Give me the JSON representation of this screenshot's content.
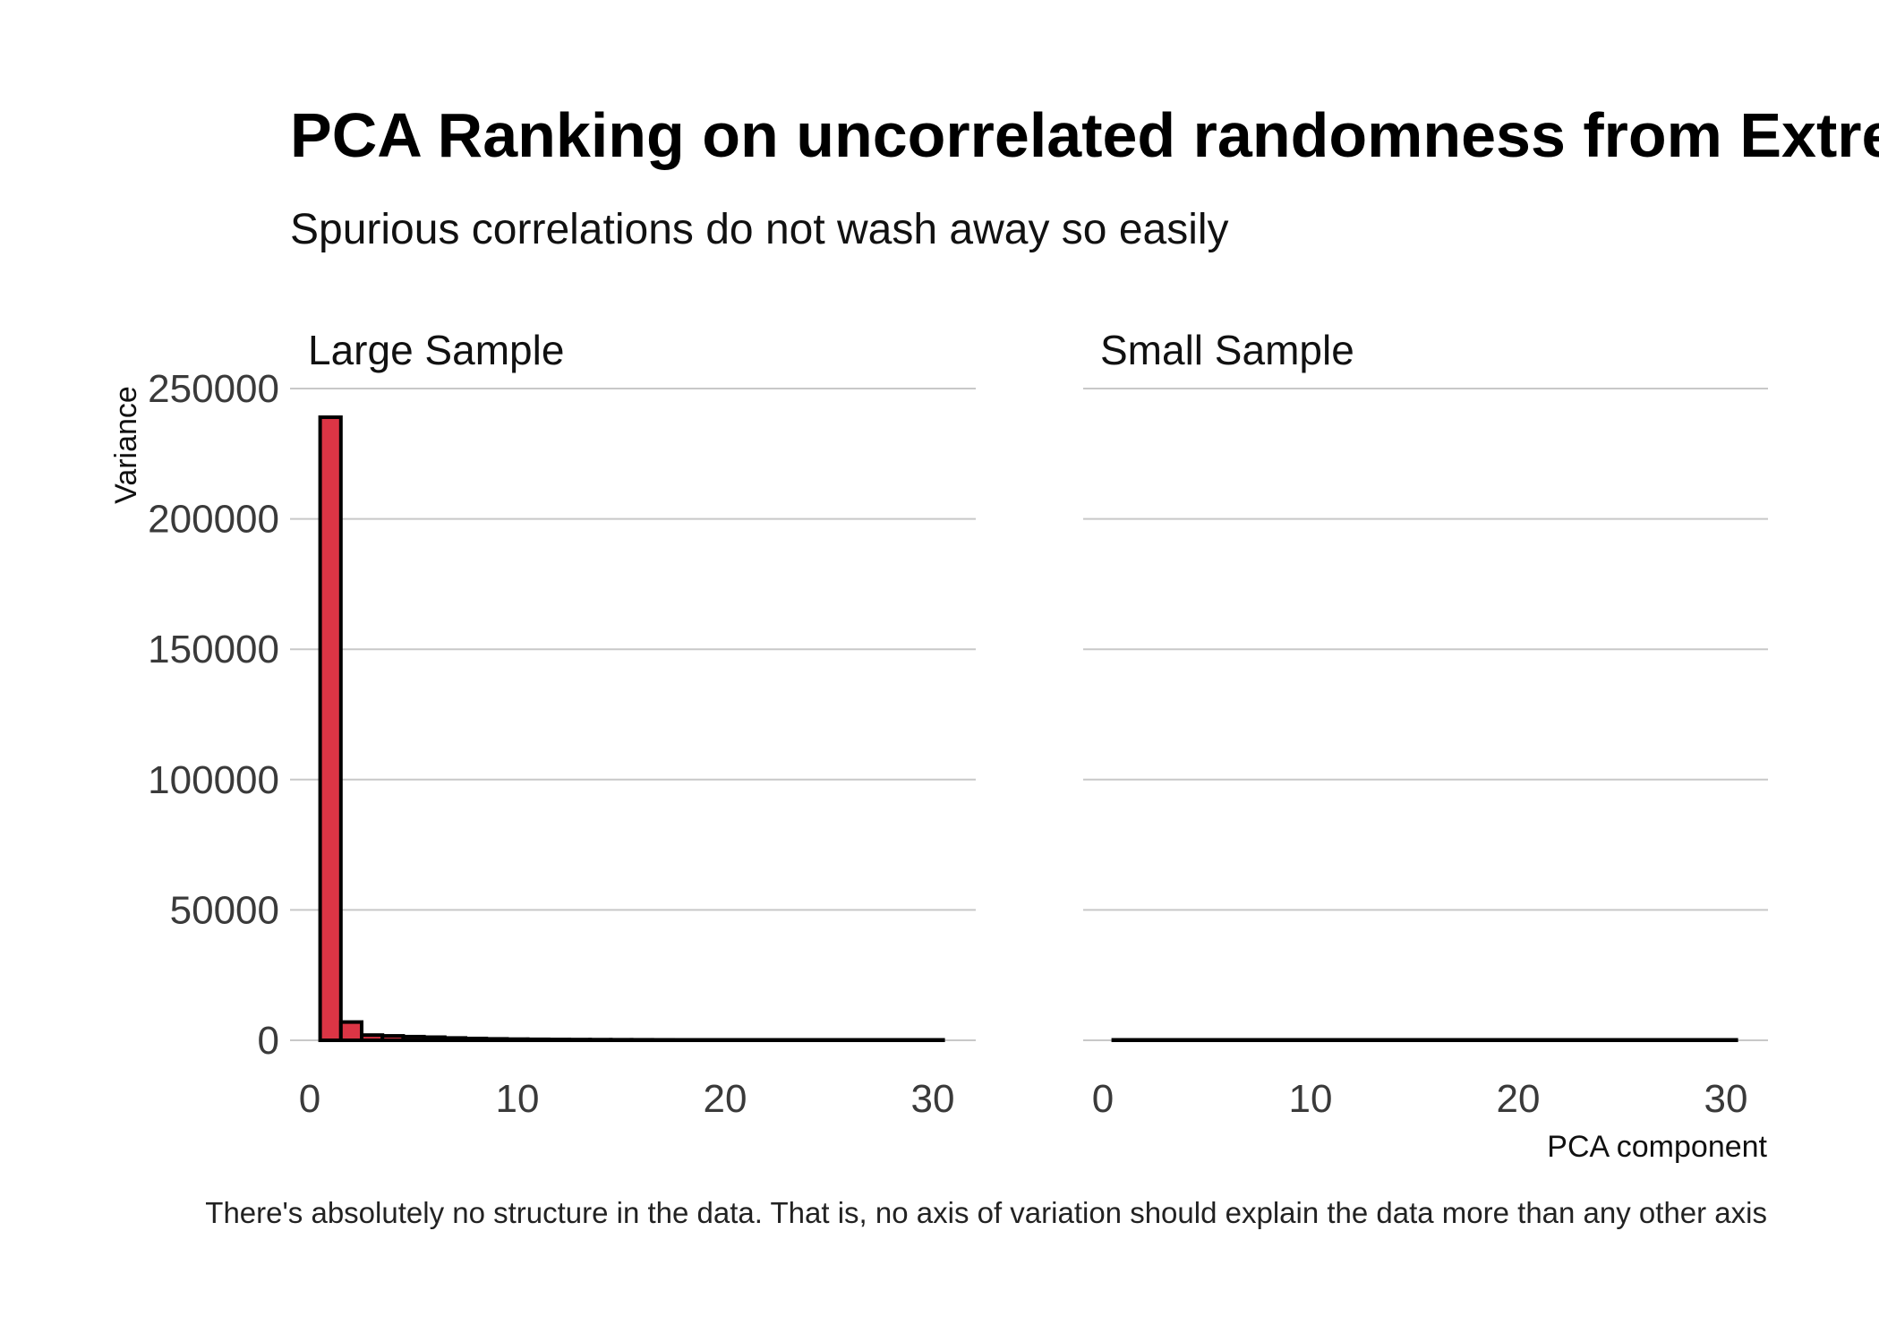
{
  "title": "PCA Ranking on uncorrelated randomness from Extremistan",
  "subtitle": "Spurious correlations do not wash away so easily",
  "caption": "There's absolutely no structure in the data. That is, no axis of variation should explain the data more than any other axis",
  "colors": {
    "bar_fill": "#dc3545",
    "bar_stroke": "#000000",
    "grid": "#c8c8c8",
    "background": "#ffffff"
  },
  "chart_data": [
    {
      "type": "bar",
      "facet": "Large Sample",
      "x": [
        1,
        2,
        3,
        4,
        5,
        6,
        7,
        8,
        9,
        10,
        11,
        12,
        13,
        14,
        15,
        16,
        17,
        18,
        19,
        20,
        21,
        22,
        23,
        24,
        25,
        26,
        27,
        28,
        29,
        30
      ],
      "values": [
        239000,
        7000,
        2000,
        1700,
        1400,
        1200,
        900,
        700,
        550,
        450,
        380,
        320,
        280,
        250,
        220,
        200,
        180,
        160,
        150,
        140,
        130,
        120,
        110,
        100,
        90,
        80,
        70,
        60,
        50,
        40
      ],
      "xlabel": "",
      "ylabel": "Variance",
      "xlim": [
        0,
        31
      ],
      "ylim": [
        0,
        250000
      ],
      "x_ticks": [
        "0",
        "10",
        "20",
        "30"
      ],
      "y_ticks": [
        "0",
        "50000",
        "100000",
        "150000",
        "200000",
        "250000"
      ],
      "grid": "horizontal"
    },
    {
      "type": "bar",
      "facet": "Small Sample",
      "x": [
        1,
        2,
        3,
        4,
        5,
        6,
        7,
        8,
        9,
        10,
        11,
        12,
        13,
        14,
        15,
        16,
        17,
        18,
        19,
        20,
        21,
        22,
        23,
        24,
        25,
        26,
        27,
        28,
        29,
        30
      ],
      "values": [
        30,
        25,
        22,
        20,
        18,
        16,
        15,
        14,
        13,
        12,
        11,
        10,
        10,
        9,
        9,
        8,
        8,
        7,
        7,
        6,
        6,
        5,
        5,
        5,
        4,
        4,
        3,
        3,
        2,
        2
      ],
      "xlabel": "PCA component",
      "ylabel": "",
      "xlim": [
        0,
        31
      ],
      "ylim": [
        0,
        250000
      ],
      "x_ticks": [
        "0",
        "10",
        "20",
        "30"
      ],
      "y_ticks": [],
      "grid": "horizontal"
    }
  ]
}
